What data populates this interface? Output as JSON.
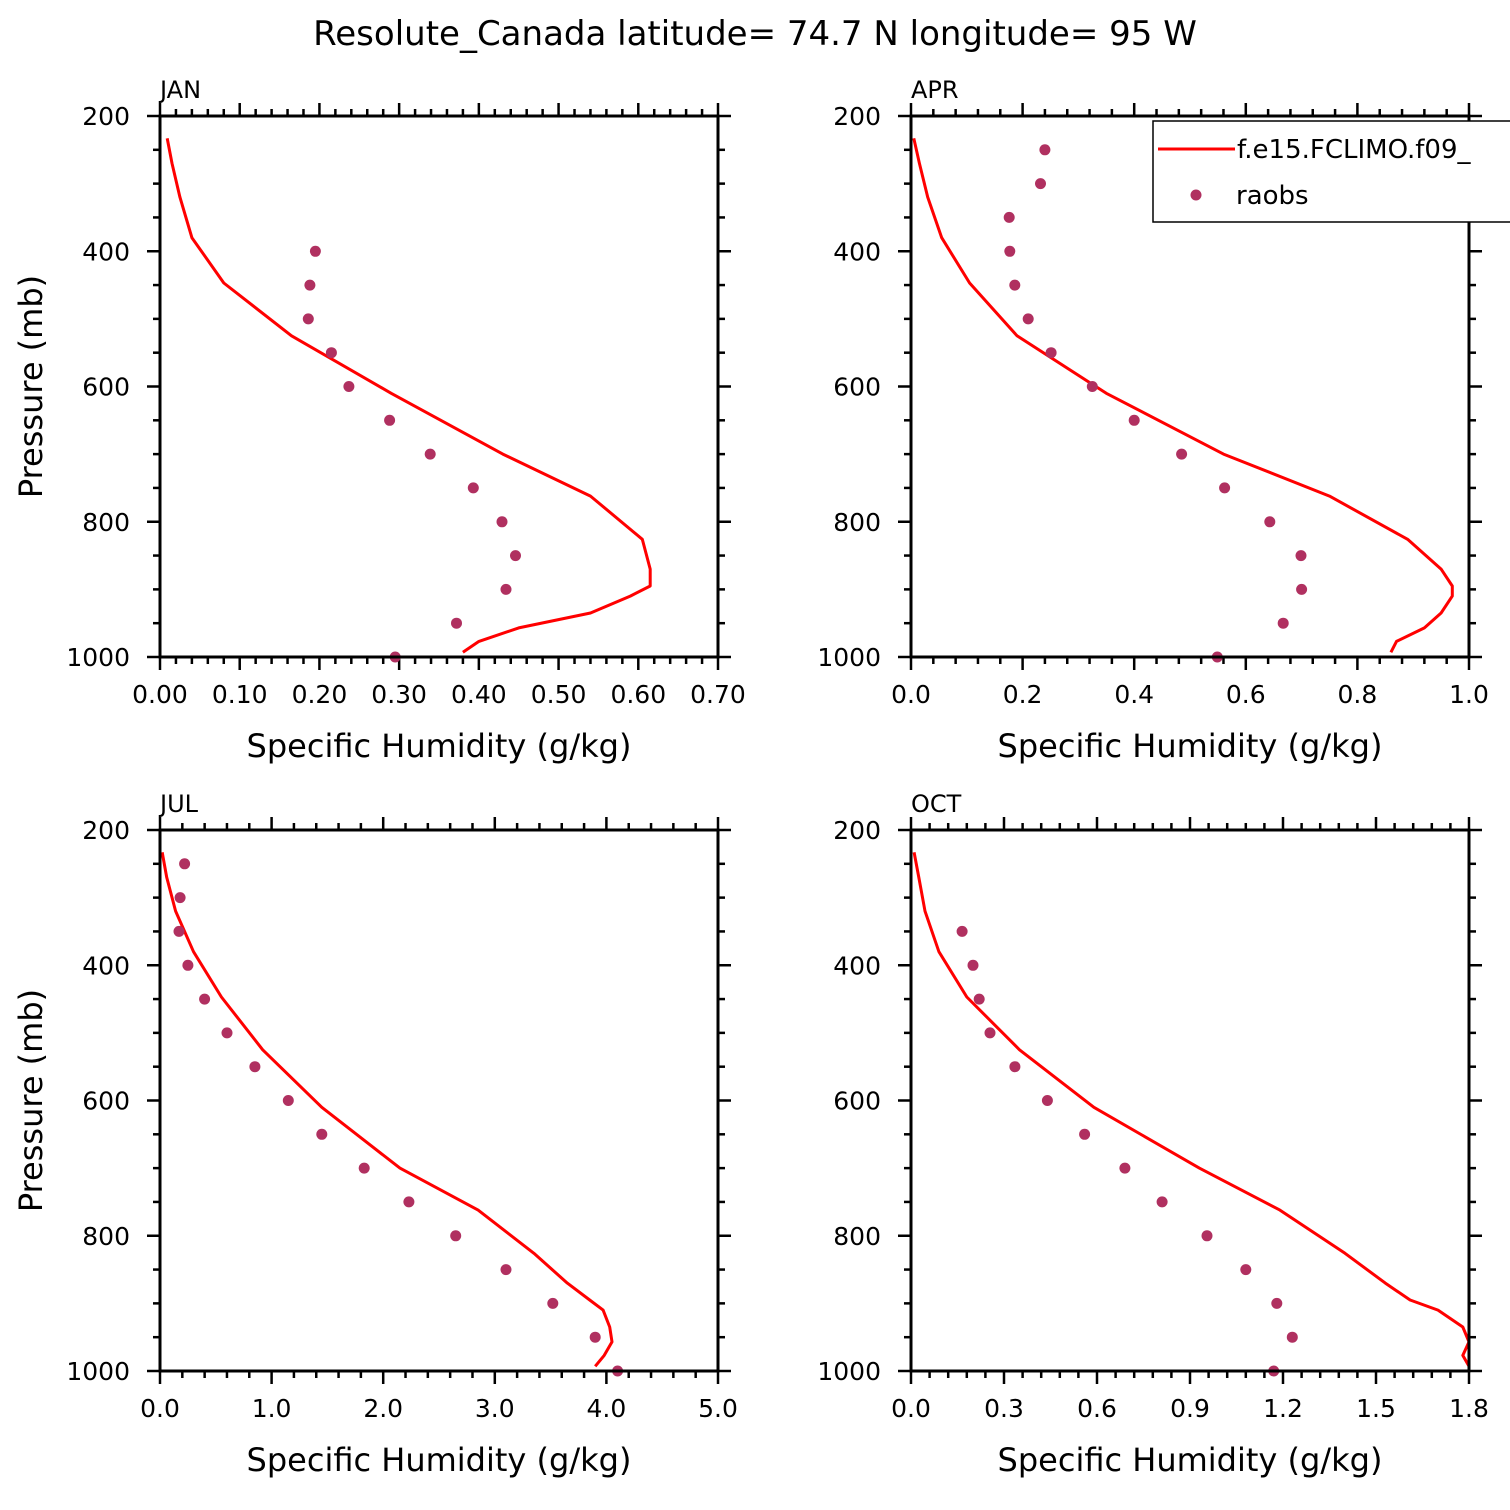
{
  "title": "Resolute_Canada  latitude= 74.7 N longitude= 95 W",
  "legend": {
    "model_label": "f.e15.FCLIMO.f09_",
    "obs_label": "raobs",
    "model_color": "#ff0000",
    "obs_color": "#b03060"
  },
  "chart_data": [
    {
      "type": "line",
      "panel": "JAN",
      "xlabel": "Specific Humidity (g/kg)",
      "ylabel": "Pressure (mb)",
      "xlim": [
        0,
        0.7
      ],
      "ylim": [
        1000,
        200
      ],
      "xticks": [
        0,
        0.1,
        0.2,
        0.3,
        0.4,
        0.5,
        0.6,
        0.7
      ],
      "xticklabels": [
        "0.00",
        "0.10",
        "0.20",
        "0.30",
        "0.40",
        "0.50",
        "0.60",
        "0.70"
      ],
      "yticks": [
        200,
        400,
        600,
        800,
        1000
      ],
      "yticklabels": [
        "200",
        "400",
        "600",
        "800",
        "1000"
      ],
      "series": [
        {
          "name": "f.e15.FCLIMO.f09_",
          "kind": "line",
          "p": [
            233,
            270,
            320,
            380,
            447,
            525,
            610,
            700,
            762,
            826,
            870,
            895,
            910,
            935,
            957,
            977,
            993
          ],
          "q": [
            0.009,
            0.015,
            0.025,
            0.04,
            0.08,
            0.165,
            0.29,
            0.43,
            0.54,
            0.605,
            0.615,
            0.615,
            0.59,
            0.54,
            0.45,
            0.4,
            0.38
          ]
        },
        {
          "name": "raobs",
          "kind": "scatter",
          "p": [
            400,
            450,
            500,
            550,
            600,
            650,
            700,
            750,
            800,
            850,
            900,
            950,
            1000
          ],
          "q": [
            0.195,
            0.188,
            0.186,
            0.215,
            0.237,
            0.288,
            0.339,
            0.393,
            0.429,
            0.446,
            0.434,
            0.372,
            0.295
          ]
        }
      ]
    },
    {
      "type": "line",
      "panel": "APR",
      "xlabel": "Specific Humidity (g/kg)",
      "ylabel": "",
      "xlim": [
        0,
        1.0
      ],
      "ylim": [
        1000,
        200
      ],
      "xticks": [
        0,
        0.2,
        0.4,
        0.6,
        0.8,
        1.0
      ],
      "xticklabels": [
        "0.0",
        "0.2",
        "0.4",
        "0.6",
        "0.8",
        "1.0"
      ],
      "yticks": [
        200,
        400,
        600,
        800,
        1000
      ],
      "yticklabels": [
        "200",
        "400",
        "600",
        "800",
        "1000"
      ],
      "series": [
        {
          "name": "f.e15.FCLIMO.f09_",
          "kind": "line",
          "p": [
            233,
            270,
            320,
            380,
            447,
            525,
            610,
            700,
            762,
            826,
            870,
            895,
            910,
            935,
            957,
            977,
            993
          ],
          "q": [
            0.005,
            0.015,
            0.03,
            0.055,
            0.105,
            0.19,
            0.35,
            0.56,
            0.75,
            0.89,
            0.95,
            0.97,
            0.97,
            0.95,
            0.92,
            0.87,
            0.86
          ]
        },
        {
          "name": "raobs",
          "kind": "scatter",
          "p": [
            250,
            300,
            350,
            400,
            450,
            500,
            550,
            600,
            650,
            700,
            750,
            800,
            850,
            900,
            950,
            1000
          ],
          "q": [
            0.24,
            0.232,
            0.176,
            0.177,
            0.186,
            0.21,
            0.251,
            0.325,
            0.4,
            0.485,
            0.562,
            0.643,
            0.699,
            0.7,
            0.667,
            0.549
          ]
        }
      ]
    },
    {
      "type": "line",
      "panel": "JUL",
      "xlabel": "Specific Humidity (g/kg)",
      "ylabel": "Pressure (mb)",
      "xlim": [
        0,
        5.0
      ],
      "ylim": [
        1000,
        200
      ],
      "xticks": [
        0,
        1,
        2,
        3,
        4,
        5
      ],
      "xticklabels": [
        "0.0",
        "1.0",
        "2.0",
        "3.0",
        "4.0",
        "5.0"
      ],
      "yticks": [
        200,
        400,
        600,
        800,
        1000
      ],
      "yticklabels": [
        "200",
        "400",
        "600",
        "800",
        "1000"
      ],
      "series": [
        {
          "name": "f.e15.FCLIMO.f09_",
          "kind": "line",
          "p": [
            233,
            270,
            320,
            380,
            447,
            525,
            610,
            700,
            762,
            826,
            870,
            895,
            910,
            935,
            957,
            977,
            993
          ],
          "q": [
            0.02,
            0.06,
            0.14,
            0.3,
            0.55,
            0.92,
            1.45,
            2.15,
            2.85,
            3.35,
            3.65,
            3.85,
            3.97,
            4.03,
            4.05,
            3.98,
            3.9
          ]
        },
        {
          "name": "raobs",
          "kind": "scatter",
          "p": [
            250,
            300,
            350,
            400,
            450,
            500,
            550,
            600,
            650,
            700,
            750,
            800,
            850,
            900,
            950,
            1000
          ],
          "q": [
            0.22,
            0.18,
            0.17,
            0.25,
            0.4,
            0.6,
            0.85,
            1.15,
            1.45,
            1.83,
            2.23,
            2.65,
            3.1,
            3.52,
            3.9,
            4.1
          ]
        }
      ]
    },
    {
      "type": "line",
      "panel": "OCT",
      "xlabel": "Specific Humidity (g/kg)",
      "ylabel": "",
      "xlim": [
        0,
        1.8
      ],
      "ylim": [
        1000,
        200
      ],
      "xticks": [
        0,
        0.3,
        0.6,
        0.9,
        1.2,
        1.5,
        1.8
      ],
      "xticklabels": [
        "0.0",
        "0.3",
        "0.6",
        "0.9",
        "1.2",
        "1.5",
        "1.8"
      ],
      "yticks": [
        200,
        400,
        600,
        800,
        1000
      ],
      "yticklabels": [
        "200",
        "400",
        "600",
        "800",
        "1000"
      ],
      "series": [
        {
          "name": "f.e15.FCLIMO.f09_",
          "kind": "line",
          "p": [
            233,
            270,
            320,
            380,
            447,
            525,
            610,
            700,
            762,
            826,
            870,
            895,
            910,
            935,
            957,
            977,
            993
          ],
          "q": [
            0.01,
            0.025,
            0.045,
            0.09,
            0.18,
            0.35,
            0.59,
            0.93,
            1.19,
            1.4,
            1.53,
            1.61,
            1.7,
            1.78,
            1.8,
            1.78,
            1.8
          ]
        },
        {
          "name": "raobs",
          "kind": "scatter",
          "p": [
            350,
            400,
            450,
            500,
            550,
            600,
            650,
            700,
            750,
            800,
            850,
            900,
            950,
            1000
          ],
          "q": [
            0.165,
            0.2,
            0.22,
            0.255,
            0.335,
            0.44,
            0.56,
            0.69,
            0.81,
            0.955,
            1.08,
            1.18,
            1.23,
            1.17
          ]
        }
      ]
    }
  ]
}
